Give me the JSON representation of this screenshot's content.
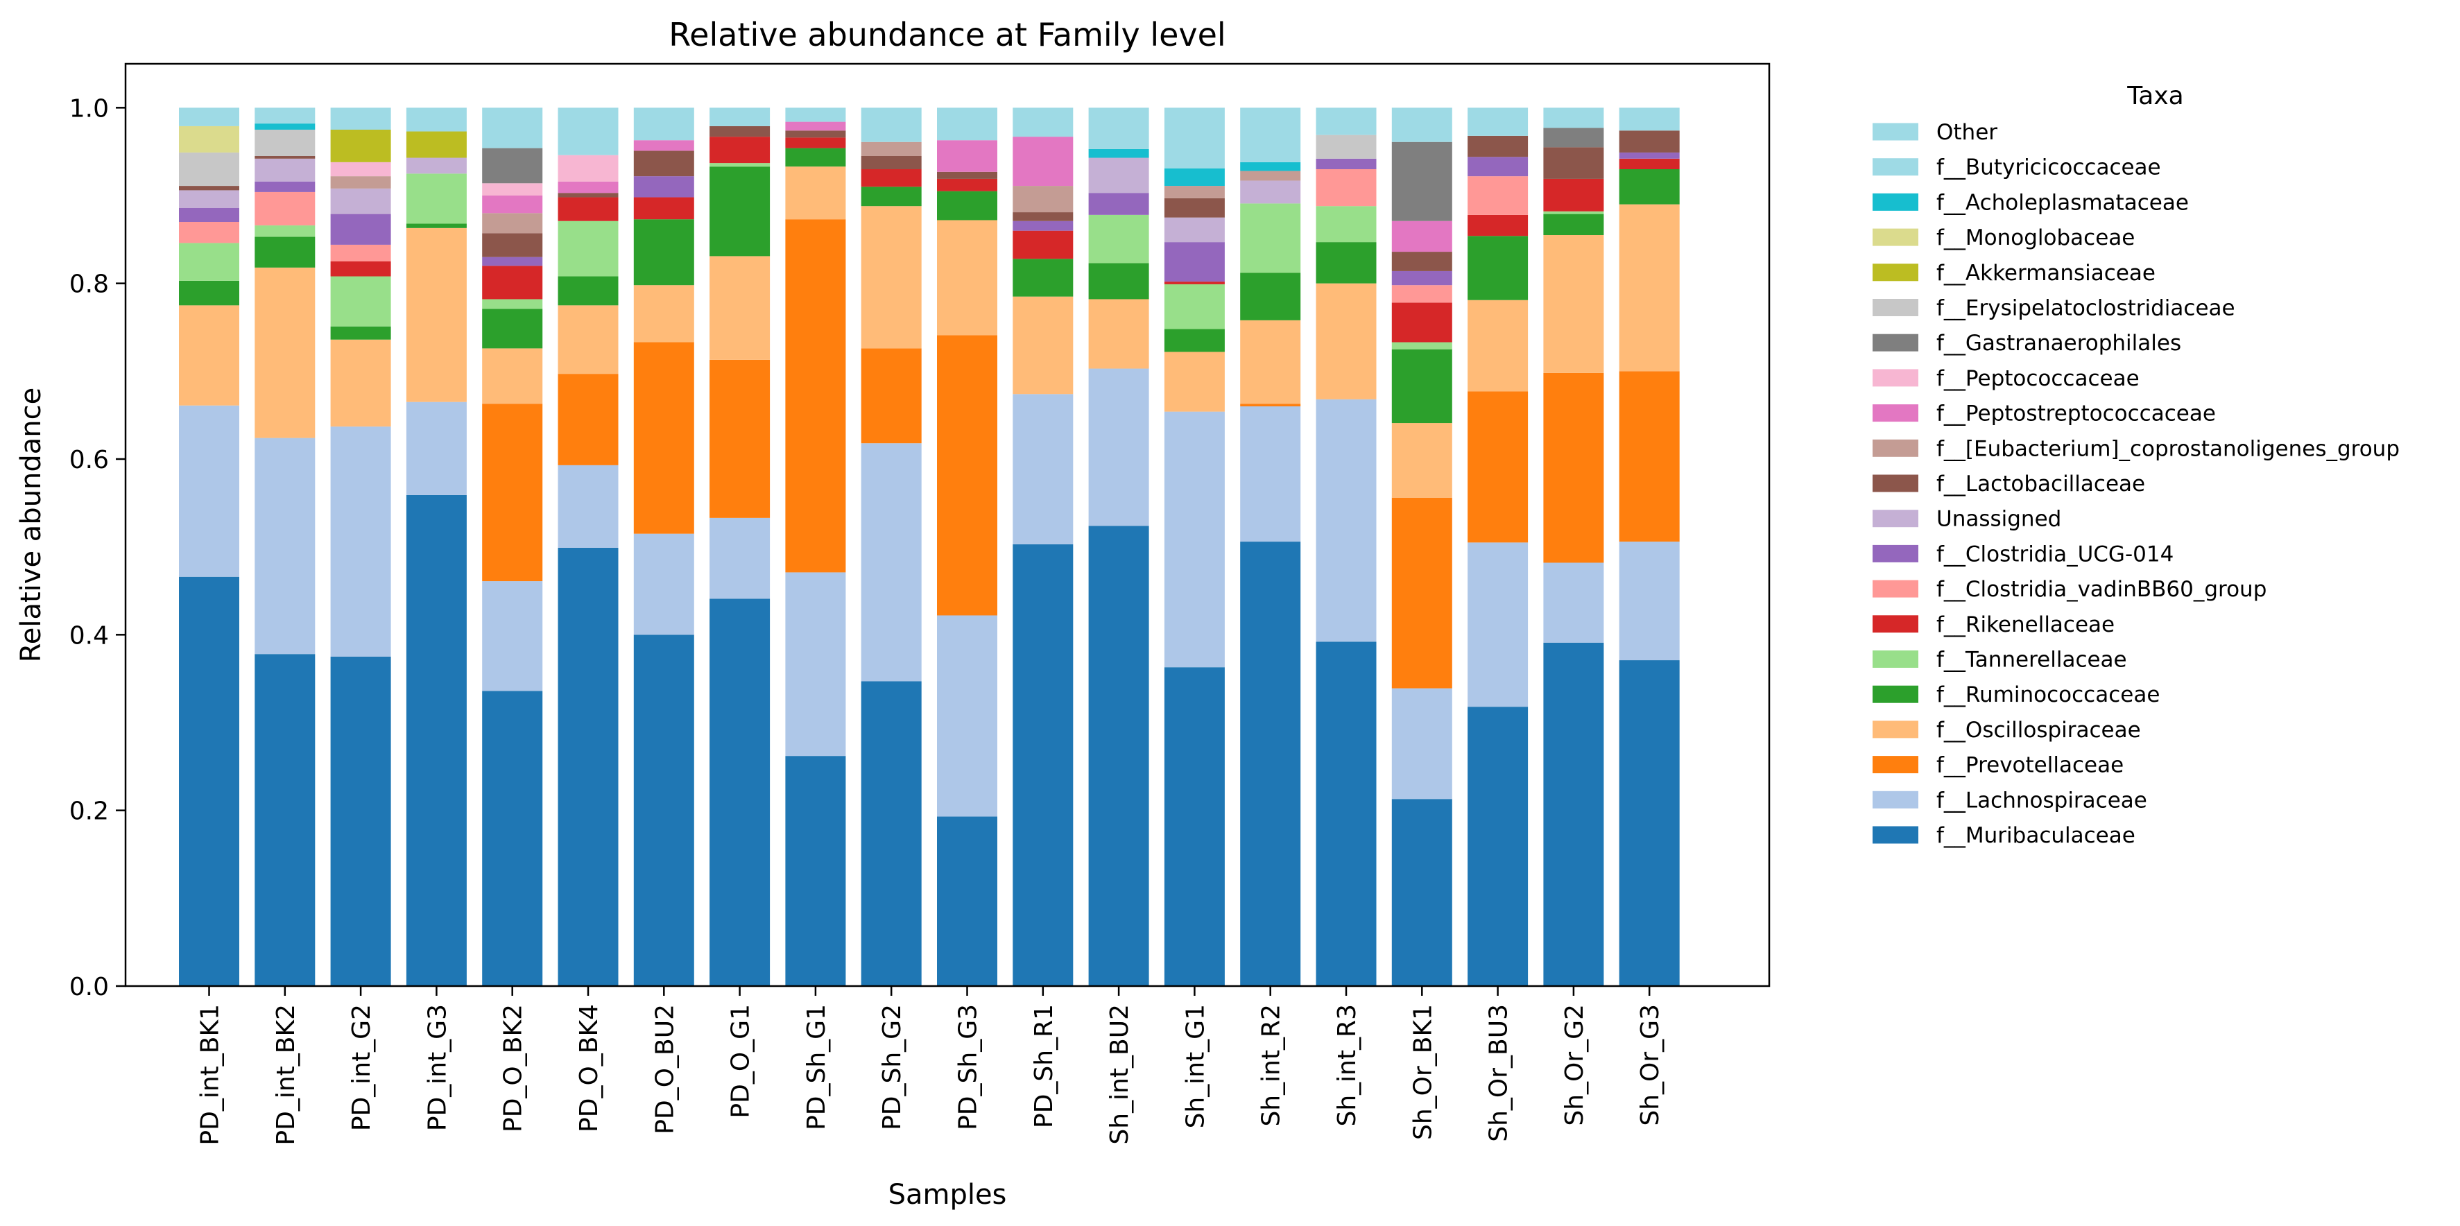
{
  "chart_data": {
    "type": "bar",
    "stacked": true,
    "title": "Relative abundance at Family level",
    "xlabel": "Samples",
    "ylabel": "Relative abundance",
    "ylim": [
      0,
      1.05
    ],
    "yticks": [
      0.0,
      0.2,
      0.4,
      0.6,
      0.8,
      1.0
    ],
    "ytick_labels": [
      "0.0",
      "0.2",
      "0.4",
      "0.6",
      "0.8",
      "1.0"
    ],
    "grid": false,
    "legend": {
      "title": "Taxa",
      "placement": "outside-right"
    },
    "categories": [
      "PD_int_BK1",
      "PD_int_BK2",
      "PD_int_G2",
      "PD_int_G3",
      "PD_O_BK2",
      "PD_O_BK4",
      "PD_O_BU2",
      "PD_O_G1",
      "PD_Sh_G1",
      "PD_Sh_G2",
      "PD_Sh_G3",
      "PD_Sh_R1",
      "Sh_int_BU2",
      "Sh_int_G1",
      "Sh_int_R2",
      "Sh_int_R3",
      "Sh_Or_BK1",
      "Sh_Or_BU3",
      "Sh_Or_G2",
      "Sh_Or_G3"
    ],
    "series": [
      {
        "name": "f__Muribaculaceae",
        "color": "#1f77b4",
        "values": [
          0.466,
          0.378,
          0.375,
          0.559,
          0.336,
          0.499,
          0.4,
          0.441,
          0.262,
          0.347,
          0.193,
          0.503,
          0.524,
          0.363,
          0.506,
          0.392,
          0.213,
          0.318,
          0.391,
          0.371
        ]
      },
      {
        "name": "f__Lachnospiraceae",
        "color": "#aec7e8",
        "values": [
          0.195,
          0.246,
          0.262,
          0.106,
          0.125,
          0.094,
          0.115,
          0.092,
          0.209,
          0.271,
          0.229,
          0.171,
          0.179,
          0.291,
          0.154,
          0.276,
          0.126,
          0.187,
          0.091,
          0.135
        ]
      },
      {
        "name": "f__Prevotellaceae",
        "color": "#ff7f0e",
        "values": [
          0.0,
          0.0,
          0.0,
          0.0,
          0.202,
          0.104,
          0.218,
          0.18,
          0.402,
          0.108,
          0.319,
          0.0,
          0.0,
          0.0,
          0.003,
          0.0,
          0.217,
          0.172,
          0.216,
          0.194
        ]
      },
      {
        "name": "f__Oscillospiraceae",
        "color": "#ffbb78",
        "values": [
          0.114,
          0.194,
          0.099,
          0.198,
          0.063,
          0.078,
          0.065,
          0.118,
          0.06,
          0.162,
          0.131,
          0.111,
          0.079,
          0.068,
          0.095,
          0.132,
          0.085,
          0.104,
          0.157,
          0.19
        ]
      },
      {
        "name": "f__Ruminococcaceae",
        "color": "#2ca02c",
        "values": [
          0.028,
          0.035,
          0.015,
          0.005,
          0.045,
          0.033,
          0.075,
          0.102,
          0.021,
          0.022,
          0.033,
          0.043,
          0.041,
          0.026,
          0.054,
          0.047,
          0.084,
          0.073,
          0.024,
          0.04
        ]
      },
      {
        "name": "f__Tannerellaceae",
        "color": "#98df8a",
        "values": [
          0.043,
          0.013,
          0.057,
          0.057,
          0.011,
          0.063,
          0.0,
          0.004,
          0.0,
          0.0,
          0.0,
          0.0,
          0.055,
          0.051,
          0.079,
          0.041,
          0.008,
          0.0,
          0.003,
          0.0
        ]
      },
      {
        "name": "f__Rikenellaceae",
        "color": "#d62728",
        "values": [
          0.0,
          0.0,
          0.017,
          0.0,
          0.038,
          0.027,
          0.025,
          0.03,
          0.012,
          0.02,
          0.014,
          0.032,
          0.0,
          0.003,
          0.0,
          0.0,
          0.045,
          0.024,
          0.037,
          0.012
        ]
      },
      {
        "name": "f__Clostridia_vadinBB60_group",
        "color": "#ff9896",
        "values": [
          0.024,
          0.038,
          0.019,
          0.0,
          0.0,
          0.0,
          0.0,
          0.0,
          0.0,
          0.0,
          0.0,
          0.0,
          0.0,
          0.0,
          0.0,
          0.042,
          0.02,
          0.044,
          0.0,
          0.0
        ]
      },
      {
        "name": "f__Clostridia_UCG-014",
        "color": "#9467bd",
        "values": [
          0.016,
          0.012,
          0.035,
          0.0,
          0.01,
          0.0,
          0.024,
          0.0,
          0.0,
          0.0,
          0.0,
          0.011,
          0.025,
          0.045,
          0.0,
          0.012,
          0.016,
          0.022,
          0.0,
          0.007
        ]
      },
      {
        "name": "Unassigned",
        "color": "#c5b0d5",
        "values": [
          0.02,
          0.026,
          0.029,
          0.018,
          0.0,
          0.0,
          0.0,
          0.0,
          0.0,
          0.0,
          0.0,
          0.0,
          0.04,
          0.028,
          0.026,
          0.0,
          0.0,
          0.0,
          0.0,
          0.0
        ]
      },
      {
        "name": "f__Lactobacillaceae",
        "color": "#8c564b",
        "values": [
          0.005,
          0.003,
          0.0,
          0.0,
          0.027,
          0.005,
          0.029,
          0.012,
          0.008,
          0.015,
          0.008,
          0.01,
          0.0,
          0.022,
          0.0,
          0.0,
          0.022,
          0.024,
          0.036,
          0.025
        ]
      },
      {
        "name": "f__[Eubacterium]_coprostanoligenes_group",
        "color": "#c49c94",
        "values": [
          0.0,
          0.0,
          0.014,
          0.0,
          0.023,
          0.0,
          0.0,
          0.0,
          0.0,
          0.016,
          0.0,
          0.03,
          0.0,
          0.014,
          0.011,
          0.0,
          0.0,
          0.0,
          0.0,
          0.0
        ]
      },
      {
        "name": "f__Peptostreptococcaceae",
        "color": "#e377c2",
        "values": [
          0.0,
          0.0,
          0.0,
          0.0,
          0.02,
          0.013,
          0.012,
          0.0,
          0.01,
          0.0,
          0.036,
          0.056,
          0.0,
          0.0,
          0.0,
          0.0,
          0.035,
          0.0,
          0.0,
          0.0
        ]
      },
      {
        "name": "f__Peptococcaceae",
        "color": "#f7b6d2",
        "values": [
          0.0,
          0.0,
          0.016,
          0.0,
          0.014,
          0.03,
          0.0,
          0.0,
          0.0,
          0.0,
          0.0,
          0.0,
          0.0,
          0.0,
          0.0,
          0.0,
          0.0,
          0.0,
          0.0,
          0.0
        ]
      },
      {
        "name": "f__Gastranaerophilales",
        "color": "#7f7f7f",
        "values": [
          0.0,
          0.0,
          0.0,
          0.0,
          0.04,
          0.0,
          0.0,
          0.0,
          0.0,
          0.0,
          0.0,
          0.0,
          0.0,
          0.0,
          0.0,
          0.0,
          0.09,
          0.0,
          0.022,
          0.0
        ]
      },
      {
        "name": "f__Erysipelatoclostridiaceae",
        "color": "#c7c7c7",
        "values": [
          0.038,
          0.03,
          0.0,
          0.0,
          0.0,
          0.0,
          0.0,
          0.0,
          0.0,
          0.0,
          0.0,
          0.0,
          0.0,
          0.0,
          0.0,
          0.027,
          0.0,
          0.0,
          0.0,
          0.0
        ]
      },
      {
        "name": "f__Akkermansiaceae",
        "color": "#bcbd22",
        "values": [
          0.0,
          0.0,
          0.037,
          0.03,
          0.0,
          0.0,
          0.0,
          0.0,
          0.0,
          0.0,
          0.0,
          0.0,
          0.0,
          0.0,
          0.0,
          0.0,
          0.0,
          0.0,
          0.0,
          0.0
        ]
      },
      {
        "name": "f__Monoglobaceae",
        "color": "#dbdb8d",
        "values": [
          0.03,
          0.0,
          0.0,
          0.0,
          0.0,
          0.0,
          0.0,
          0.0,
          0.0,
          0.0,
          0.0,
          0.0,
          0.0,
          0.0,
          0.0,
          0.0,
          0.0,
          0.0,
          0.0,
          0.0
        ]
      },
      {
        "name": "f__Acholeplasmataceae",
        "color": "#17becf",
        "values": [
          0.0,
          0.007,
          0.0,
          0.0,
          0.0,
          0.0,
          0.0,
          0.0,
          0.0,
          0.0,
          0.0,
          0.0,
          0.01,
          0.02,
          0.01,
          0.0,
          0.0,
          0.0,
          0.0,
          0.0
        ]
      },
      {
        "name": "f__Butyricicoccaceae",
        "color": "#9edae5",
        "values": [
          0.0,
          0.0,
          0.0,
          0.0,
          0.0,
          0.0,
          0.0,
          0.0,
          0.0,
          0.0,
          0.0,
          0.0,
          0.0,
          0.0,
          0.0,
          0.0,
          0.0,
          0.0,
          0.0,
          0.0
        ]
      },
      {
        "name": "Other",
        "color": "#9edae5",
        "values": [
          0.021,
          0.018,
          0.025,
          0.027,
          0.046,
          0.054,
          0.037,
          0.021,
          0.016,
          0.039,
          0.037,
          0.033,
          0.047,
          0.069,
          0.062,
          0.031,
          0.039,
          0.032,
          0.023,
          0.026
        ]
      }
    ]
  }
}
